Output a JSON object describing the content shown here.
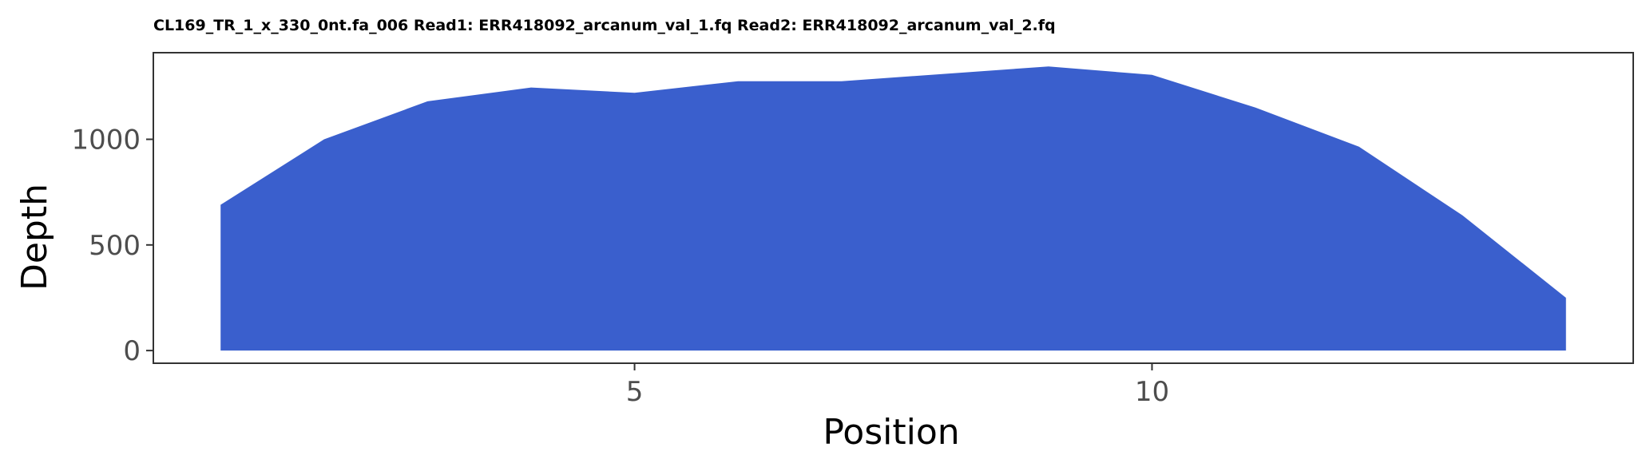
{
  "chart_data": {
    "type": "area",
    "title": "CL169_TR_1_x_330_0nt.fa_006 Read1: ERR418092_arcanum_val_1.fq Read2: ERR418092_arcanum_val_2.fq",
    "xlabel": "Position",
    "ylabel": "Depth",
    "x": [
      1,
      2,
      3,
      4,
      5,
      6,
      7,
      8,
      9,
      10,
      11,
      12,
      13,
      14
    ],
    "series": [
      {
        "values": [
          690,
          1000,
          1180,
          1245,
          1220,
          1275,
          1275,
          1310,
          1345,
          1305,
          1150,
          965,
          640,
          250
        ],
        "color": "#3a5fcd"
      }
    ],
    "xlim": [
      0.35,
      14.65
    ],
    "ylim": [
      -60,
      1410
    ],
    "xticks": [
      5,
      10
    ],
    "yticks": [
      0,
      500,
      1000
    ],
    "xtick_labels": [
      "5",
      "10"
    ],
    "ytick_labels": [
      "0",
      "500",
      "1000"
    ],
    "grid": false,
    "legend": "none",
    "panel_border_color": "#333333",
    "background": "#ffffff"
  }
}
